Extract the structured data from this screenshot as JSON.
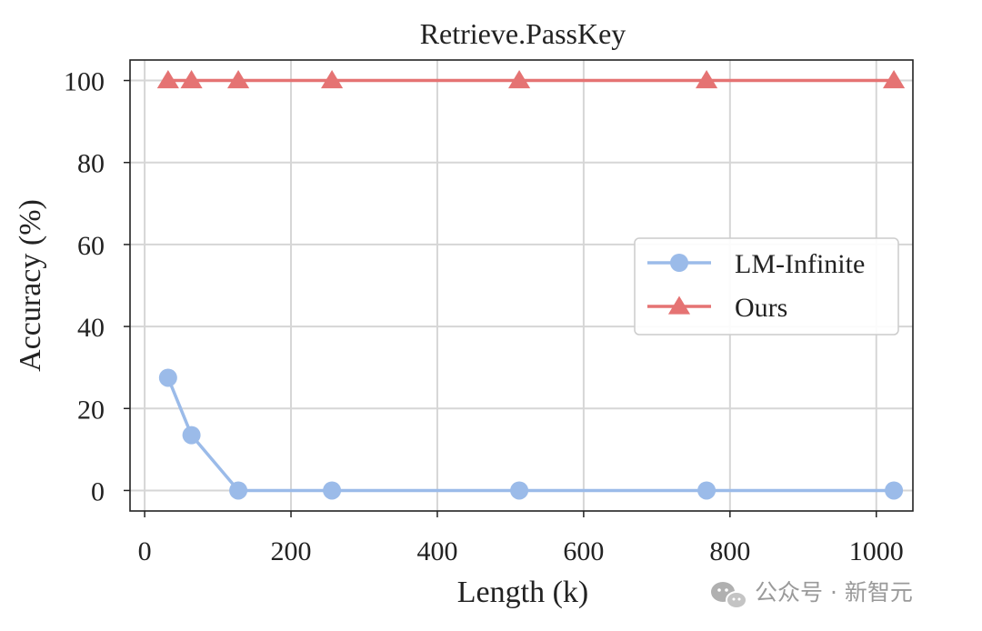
{
  "chart_data": {
    "type": "line",
    "title": "Retrieve.PassKey",
    "xlabel": "Length (k)",
    "ylabel": "Accuracy (%)",
    "xlim": [
      -20,
      1050
    ],
    "ylim": [
      -5,
      105
    ],
    "xticks": [
      0,
      200,
      400,
      600,
      800,
      1000
    ],
    "xtick_labels": [
      "0",
      "200",
      "400",
      "600",
      "800",
      "1000"
    ],
    "yticks": [
      0,
      20,
      40,
      60,
      80,
      100
    ],
    "ytick_labels": [
      "0",
      "20",
      "40",
      "60",
      "80",
      "100"
    ],
    "grid": true,
    "legend_position": "center-right",
    "series": [
      {
        "name": "LM-Infinite",
        "marker": "circle",
        "color": "#9bbbe9",
        "x": [
          32,
          64,
          128,
          256,
          512,
          768,
          1024
        ],
        "y": [
          27.5,
          13.5,
          0,
          0,
          0,
          0,
          0
        ]
      },
      {
        "name": "Ours",
        "marker": "triangle",
        "color": "#e57373",
        "x": [
          32,
          64,
          128,
          256,
          512,
          768,
          1024
        ],
        "y": [
          100,
          100,
          100,
          100,
          100,
          100,
          100
        ]
      }
    ]
  },
  "watermark": {
    "icon": "wechat-icon",
    "text": "公众号 · 新智元"
  }
}
